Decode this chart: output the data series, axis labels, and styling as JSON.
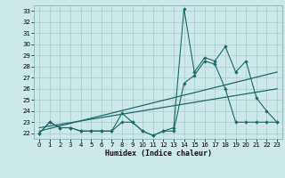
{
  "xlabel": "Humidex (Indice chaleur)",
  "x_values": [
    0,
    1,
    2,
    3,
    4,
    5,
    6,
    7,
    8,
    9,
    10,
    11,
    12,
    13,
    14,
    15,
    16,
    17,
    18,
    19,
    20,
    21,
    22,
    23
  ],
  "line1_y": [
    22,
    23,
    22.5,
    22.5,
    22.2,
    22.2,
    22.2,
    22.2,
    23.8,
    23,
    22.2,
    21.8,
    22.2,
    22.5,
    33.2,
    27.5,
    28.8,
    28.5,
    29.8,
    27.5,
    28.5,
    25.2,
    24,
    23
  ],
  "line2_y": [
    22,
    23,
    22.5,
    22.5,
    22.2,
    22.2,
    22.2,
    22.2,
    23.0,
    23,
    22.2,
    21.8,
    22.2,
    22.2,
    26.5,
    27.2,
    28.5,
    28.2,
    26.0,
    23,
    23,
    23,
    23,
    23
  ],
  "trend1_x": [
    0,
    23
  ],
  "trend1_y": [
    22.2,
    27.5
  ],
  "trend2_x": [
    0,
    23
  ],
  "trend2_y": [
    22.5,
    26.0
  ],
  "background_color": "#cce8e8",
  "grid_color": "#aacccc",
  "line_color": "#1a6b6b",
  "ylim": [
    21.5,
    33.5
  ],
  "xlim": [
    -0.5,
    23.5
  ],
  "yticks": [
    22,
    23,
    24,
    25,
    26,
    27,
    28,
    29,
    30,
    31,
    32,
    33
  ],
  "xticks": [
    0,
    1,
    2,
    3,
    4,
    5,
    6,
    7,
    8,
    9,
    10,
    11,
    12,
    13,
    14,
    15,
    16,
    17,
    18,
    19,
    20,
    21,
    22,
    23
  ]
}
